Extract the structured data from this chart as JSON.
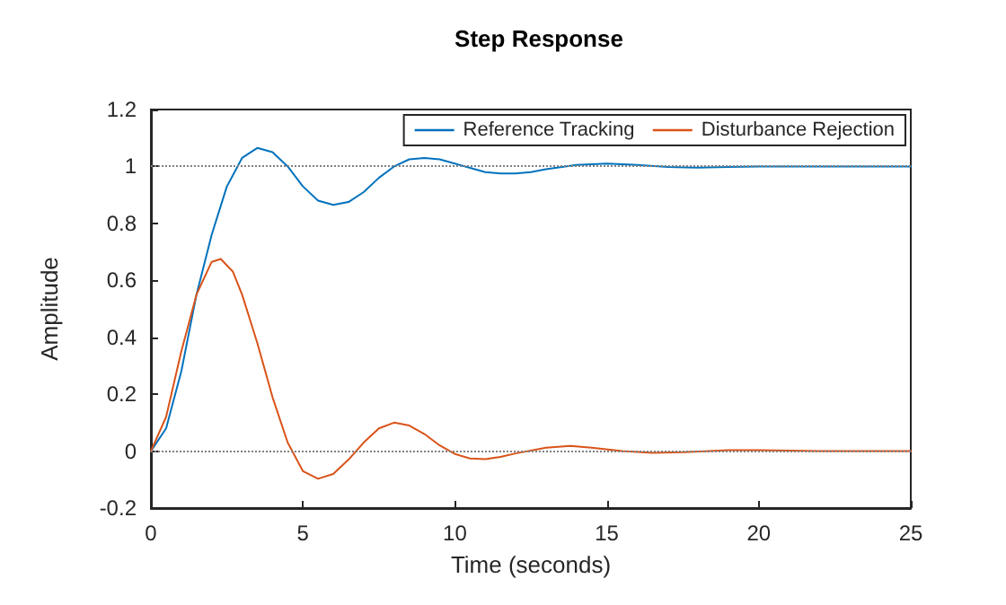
{
  "chart_data": {
    "type": "line",
    "title": "Step Response",
    "xlabel": "Time (seconds)",
    "ylabel": "Amplitude",
    "xlim": [
      0,
      25
    ],
    "xticks": [
      0,
      5,
      10,
      15,
      20,
      25
    ],
    "ylim": [
      -0.2,
      1.2
    ],
    "yticks": [
      -0.2,
      0,
      0.2,
      0.4,
      0.6,
      0.8,
      1,
      1.2
    ],
    "grid": false,
    "legend": "top right",
    "marker": "none",
    "line_style": "solid",
    "ref_lines": [
      {
        "axis": "y",
        "value": 1,
        "color": "#808080",
        "line_style": "dotted"
      },
      {
        "axis": "y",
        "value": 0,
        "color": "#808080",
        "line_style": "dotted"
      }
    ],
    "series": [
      {
        "name": "Reference Tracking",
        "color": "#0072bd",
        "x": [
          0,
          0.5,
          1,
          1.5,
          2,
          2.5,
          3,
          3.5,
          4,
          4.5,
          5,
          5.5,
          6,
          6.5,
          7,
          7.5,
          8,
          8.5,
          9,
          9.5,
          10,
          10.5,
          11,
          11.5,
          12,
          12.5,
          13,
          14,
          15,
          16,
          17,
          18,
          19,
          20,
          22,
          25
        ],
        "values": [
          0,
          0.08,
          0.28,
          0.55,
          0.76,
          0.93,
          1.03,
          1.065,
          1.05,
          1.0,
          0.93,
          0.88,
          0.865,
          0.875,
          0.91,
          0.96,
          1.0,
          1.025,
          1.03,
          1.025,
          1.01,
          0.995,
          0.98,
          0.975,
          0.975,
          0.98,
          0.99,
          1.005,
          1.01,
          1.005,
          0.998,
          0.996,
          0.998,
          1.0,
          1.0,
          1.0
        ]
      },
      {
        "name": "Disturbance Rejection",
        "color": "#d95319",
        "x": [
          0,
          0.5,
          1,
          1.5,
          2,
          2.3,
          2.7,
          3,
          3.5,
          4,
          4.5,
          5,
          5.5,
          6,
          6.5,
          7,
          7.5,
          8,
          8.5,
          9,
          9.5,
          10,
          10.5,
          11,
          11.5,
          12,
          13,
          13.8,
          14.5,
          15.5,
          16.5,
          17.5,
          19,
          20,
          22,
          25
        ],
        "values": [
          0,
          0.12,
          0.35,
          0.55,
          0.665,
          0.675,
          0.63,
          0.55,
          0.38,
          0.19,
          0.03,
          -0.07,
          -0.097,
          -0.08,
          -0.03,
          0.03,
          0.08,
          0.1,
          0.09,
          0.06,
          0.02,
          -0.01,
          -0.026,
          -0.028,
          -0.02,
          -0.008,
          0.012,
          0.018,
          0.012,
          0,
          -0.006,
          -0.004,
          0.003,
          0.003,
          0,
          0
        ]
      }
    ]
  }
}
